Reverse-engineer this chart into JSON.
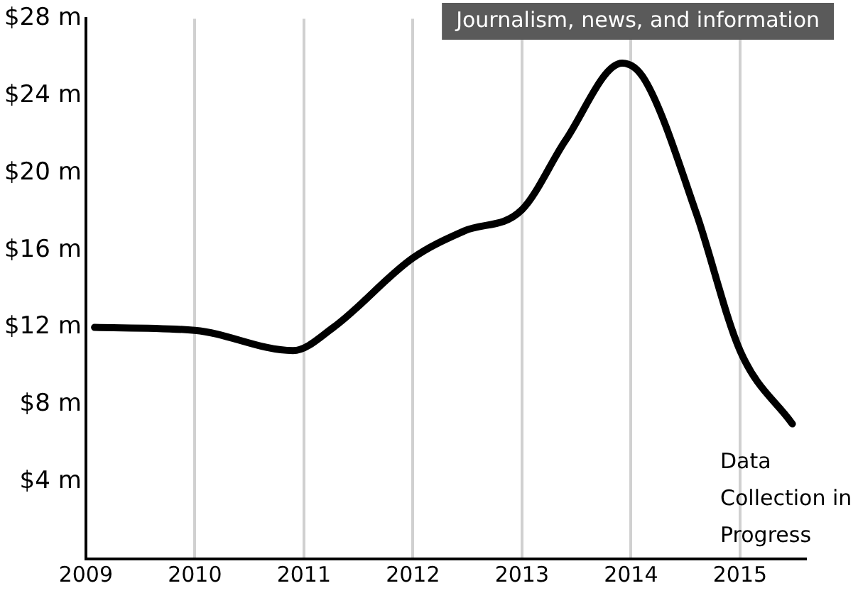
{
  "chart_data": {
    "type": "line",
    "title": "Journalism, news, and information",
    "x": [
      2009.08,
      2010,
      2010.9,
      2011.27,
      2012,
      2012.47,
      2013,
      2013.4,
      2013.92,
      2014.13,
      2014.6,
      2015,
      2015.48
    ],
    "series": [
      {
        "color": "#000000",
        "values": [
          12.0,
          11.85,
          10.8,
          12.0,
          15.6,
          17.0,
          18.1,
          21.7,
          25.7,
          24.8,
          17.9,
          10.8,
          7.0
        ]
      }
    ],
    "xlim": [
      2009,
      2015.6
    ],
    "xticks": [
      2009,
      2010,
      2011,
      2012,
      2013,
      2014,
      2015
    ],
    "ylim": [
      0,
      28
    ],
    "yticks": [
      {
        "value": 4,
        "label": "$4 m"
      },
      {
        "value": 8,
        "label": "$8 m"
      },
      {
        "value": 12,
        "label": "$12 m"
      },
      {
        "value": 16,
        "label": "$16 m"
      },
      {
        "value": 20,
        "label": "$20 m"
      },
      {
        "value": 24,
        "label": "$24 m"
      },
      {
        "value": 28,
        "label": "$28 m"
      }
    ],
    "grid": "x",
    "legend": false,
    "marker": "none",
    "line_style": "solid",
    "annotations": [
      "Data Collection in Progress"
    ]
  }
}
